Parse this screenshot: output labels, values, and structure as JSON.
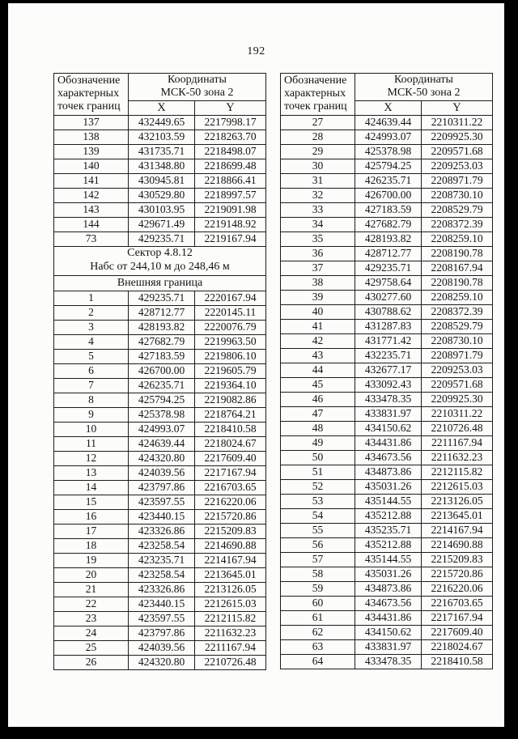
{
  "page": {
    "number": "192"
  },
  "table_headers": {
    "points_label": "Обозначение характерных точек границ",
    "coords_label_line1": "Координаты",
    "coords_label_line2": "МСК-50 зона 2",
    "x_label": "X",
    "y_label": "Y"
  },
  "left_table": {
    "rows_top": [
      {
        "n": "137",
        "x": "432449.65",
        "y": "2217998.17"
      },
      {
        "n": "138",
        "x": "432103.59",
        "y": "2218263.70"
      },
      {
        "n": "139",
        "x": "431735.71",
        "y": "2218498.07"
      },
      {
        "n": "140",
        "x": "431348.80",
        "y": "2218699.48"
      },
      {
        "n": "141",
        "x": "430945.81",
        "y": "2218866.41"
      },
      {
        "n": "142",
        "x": "430529.80",
        "y": "2218997.57"
      },
      {
        "n": "143",
        "x": "430103.95",
        "y": "2219091.98"
      },
      {
        "n": "144",
        "x": "429671.49",
        "y": "2219148.92"
      },
      {
        "n": "73",
        "x": "429235.71",
        "y": "2219167.94"
      }
    ],
    "section_line1": "Сектор 4.8.12",
    "section_line2": "Набс от 244,10 м до 248,46 м",
    "subsection": "Внешняя граница",
    "rows_bottom": [
      {
        "n": "1",
        "x": "429235.71",
        "y": "2220167.94"
      },
      {
        "n": "2",
        "x": "428712.77",
        "y": "2220145.11"
      },
      {
        "n": "3",
        "x": "428193.82",
        "y": "2220076.79"
      },
      {
        "n": "4",
        "x": "427682.79",
        "y": "2219963.50"
      },
      {
        "n": "5",
        "x": "427183.59",
        "y": "2219806.10"
      },
      {
        "n": "6",
        "x": "426700.00",
        "y": "2219605.79"
      },
      {
        "n": "7",
        "x": "426235.71",
        "y": "2219364.10"
      },
      {
        "n": "8",
        "x": "425794.25",
        "y": "2219082.86"
      },
      {
        "n": "9",
        "x": "425378.98",
        "y": "2218764.21"
      },
      {
        "n": "10",
        "x": "424993.07",
        "y": "2218410.58"
      },
      {
        "n": "11",
        "x": "424639.44",
        "y": "2218024.67"
      },
      {
        "n": "12",
        "x": "424320.80",
        "y": "2217609.40"
      },
      {
        "n": "13",
        "x": "424039.56",
        "y": "2217167.94"
      },
      {
        "n": "14",
        "x": "423797.86",
        "y": "2216703.65"
      },
      {
        "n": "15",
        "x": "423597.55",
        "y": "2216220.06"
      },
      {
        "n": "16",
        "x": "423440.15",
        "y": "2215720.86"
      },
      {
        "n": "17",
        "x": "423326.86",
        "y": "2215209.83"
      },
      {
        "n": "18",
        "x": "423258.54",
        "y": "2214690.88"
      },
      {
        "n": "19",
        "x": "423235.71",
        "y": "2214167.94"
      },
      {
        "n": "20",
        "x": "423258.54",
        "y": "2213645.01"
      },
      {
        "n": "21",
        "x": "423326.86",
        "y": "2213126.05"
      },
      {
        "n": "22",
        "x": "423440.15",
        "y": "2212615.03"
      },
      {
        "n": "23",
        "x": "423597.55",
        "y": "2212115.82"
      },
      {
        "n": "24",
        "x": "423797.86",
        "y": "2211632.23"
      },
      {
        "n": "25",
        "x": "424039.56",
        "y": "2211167.94"
      },
      {
        "n": "26",
        "x": "424320.80",
        "y": "2210726.48"
      }
    ]
  },
  "right_table": {
    "rows": [
      {
        "n": "27",
        "x": "424639.44",
        "y": "2210311.22"
      },
      {
        "n": "28",
        "x": "424993.07",
        "y": "2209925.30"
      },
      {
        "n": "29",
        "x": "425378.98",
        "y": "2209571.68"
      },
      {
        "n": "30",
        "x": "425794.25",
        "y": "2209253.03"
      },
      {
        "n": "31",
        "x": "426235.71",
        "y": "2208971.79"
      },
      {
        "n": "32",
        "x": "426700.00",
        "y": "2208730.10"
      },
      {
        "n": "33",
        "x": "427183.59",
        "y": "2208529.79"
      },
      {
        "n": "34",
        "x": "427682.79",
        "y": "2208372.39"
      },
      {
        "n": "35",
        "x": "428193.82",
        "y": "2208259.10"
      },
      {
        "n": "36",
        "x": "428712.77",
        "y": "2208190.78"
      },
      {
        "n": "37",
        "x": "429235.71",
        "y": "2208167.94"
      },
      {
        "n": "38",
        "x": "429758.64",
        "y": "2208190.78"
      },
      {
        "n": "39",
        "x": "430277.60",
        "y": "2208259.10"
      },
      {
        "n": "40",
        "x": "430788.62",
        "y": "2208372.39"
      },
      {
        "n": "41",
        "x": "431287.83",
        "y": "2208529.79"
      },
      {
        "n": "42",
        "x": "431771.42",
        "y": "2208730.10"
      },
      {
        "n": "43",
        "x": "432235.71",
        "y": "2208971.79"
      },
      {
        "n": "44",
        "x": "432677.17",
        "y": "2209253.03"
      },
      {
        "n": "45",
        "x": "433092.43",
        "y": "2209571.68"
      },
      {
        "n": "46",
        "x": "433478.35",
        "y": "2209925.30"
      },
      {
        "n": "47",
        "x": "433831.97",
        "y": "2210311.22"
      },
      {
        "n": "48",
        "x": "434150.62",
        "y": "2210726.48"
      },
      {
        "n": "49",
        "x": "434431.86",
        "y": "2211167.94"
      },
      {
        "n": "50",
        "x": "434673.56",
        "y": "2211632.23"
      },
      {
        "n": "51",
        "x": "434873.86",
        "y": "2212115.82"
      },
      {
        "n": "52",
        "x": "435031.26",
        "y": "2212615.03"
      },
      {
        "n": "53",
        "x": "435144.55",
        "y": "2213126.05"
      },
      {
        "n": "54",
        "x": "435212.88",
        "y": "2213645.01"
      },
      {
        "n": "55",
        "x": "435235.71",
        "y": "2214167.94"
      },
      {
        "n": "56",
        "x": "435212.88",
        "y": "2214690.88"
      },
      {
        "n": "57",
        "x": "435144.55",
        "y": "2215209.83"
      },
      {
        "n": "58",
        "x": "435031.26",
        "y": "2215720.86"
      },
      {
        "n": "59",
        "x": "434873.86",
        "y": "2216220.06"
      },
      {
        "n": "60",
        "x": "434673.56",
        "y": "2216703.65"
      },
      {
        "n": "61",
        "x": "434431.86",
        "y": "2217167.94"
      },
      {
        "n": "62",
        "x": "434150.62",
        "y": "2217609.40"
      },
      {
        "n": "63",
        "x": "433831.97",
        "y": "2218024.67"
      },
      {
        "n": "64",
        "x": "433478.35",
        "y": "2218410.58"
      }
    ]
  }
}
